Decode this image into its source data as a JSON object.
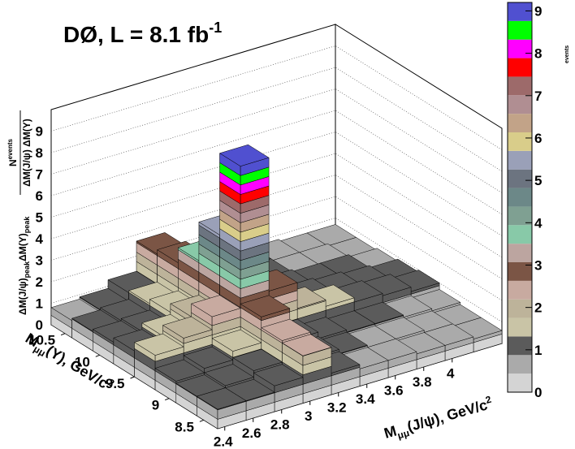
{
  "chart_data": {
    "type": "lego",
    "title": "DØ, L = 8.1 fb",
    "title_sup": "-1",
    "xlabel": [
      "M",
      "μμ",
      "(J/ψ), GeV/c",
      "2"
    ],
    "ylabel": [
      "M",
      "μμ",
      "(Υ), GeV/c",
      "2"
    ],
    "zlabel": {
      "prefix": [
        "ΔM(J/ψ)",
        "peak",
        "ΔM(Υ)",
        "peak"
      ],
      "numerator": [
        "N",
        "events"
      ],
      "denominator": "ΔM(J/ψ) ΔM(Υ)"
    },
    "colorbar_label": "events",
    "xbins": [
      2.35,
      2.55,
      2.75,
      2.95,
      3.15,
      3.35,
      3.55,
      3.75,
      3.95,
      4.15,
      4.35
    ],
    "ybins": [
      8.3,
      8.6,
      8.9,
      9.2,
      9.5,
      9.8,
      10.1,
      10.4,
      10.7
    ],
    "values": [
      [
        0.9,
        0.9,
        1.2,
        2.2,
        1.0,
        0.8,
        0.8,
        0.7,
        0.7,
        0.6
      ],
      [
        0.9,
        1.0,
        1.3,
        2.3,
        1.1,
        0.9,
        0.8,
        0.8,
        0.7,
        0.6
      ],
      [
        1.0,
        1.2,
        1.6,
        2.8,
        1.3,
        1.0,
        0.9,
        0.9,
        0.8,
        0.7
      ],
      [
        1.6,
        2.0,
        2.6,
        9.2,
        3.0,
        1.8,
        1.5,
        1.3,
        1.2,
        1.0
      ],
      [
        1.2,
        1.5,
        2.0,
        5.4,
        2.2,
        1.4,
        1.2,
        1.1,
        1.0,
        0.9
      ],
      [
        1.0,
        1.1,
        1.6,
        3.6,
        1.8,
        1.1,
        1.0,
        0.9,
        0.9,
        0.8
      ],
      [
        0.9,
        1.0,
        1.4,
        2.9,
        1.5,
        1.0,
        0.9,
        0.8,
        0.8,
        0.7
      ],
      [
        0.8,
        0.9,
        1.3,
        2.7,
        1.4,
        0.9,
        0.9,
        0.8,
        0.7,
        0.7
      ]
    ],
    "xlim": [
      2.35,
      4.35
    ],
    "ylim": [
      8.3,
      10.7
    ],
    "zlim": [
      0,
      10
    ],
    "xticks": [
      2.4,
      2.6,
      2.8,
      3,
      3.2,
      3.4,
      3.6,
      3.8,
      4
    ],
    "yticks": [
      8.5,
      9,
      9.5,
      10,
      10.5
    ],
    "zticks": [
      0,
      1,
      2,
      3,
      4,
      5,
      6,
      7,
      8,
      9
    ],
    "colorbar_lim": [
      0,
      9.2
    ],
    "colorbar_ticks": [
      0,
      1,
      2,
      3,
      4,
      5,
      6,
      7,
      8,
      9
    ],
    "palette": [
      "#d4d4d4",
      "#aaaaaa",
      "#5b5b5b",
      "#c9c4a6",
      "#bdb39a",
      "#c8aaa0",
      "#7b5545",
      "#bca5a0",
      "#88c9a8",
      "#7fa092",
      "#6c8888",
      "#6c7480",
      "#9aa0b8",
      "#d9cd8a",
      "#c2a388",
      "#b08e92",
      "#9d6a6a",
      "#ff0000",
      "#ff00ff",
      "#00ff00",
      "#5050d0"
    ],
    "grid": true
  }
}
